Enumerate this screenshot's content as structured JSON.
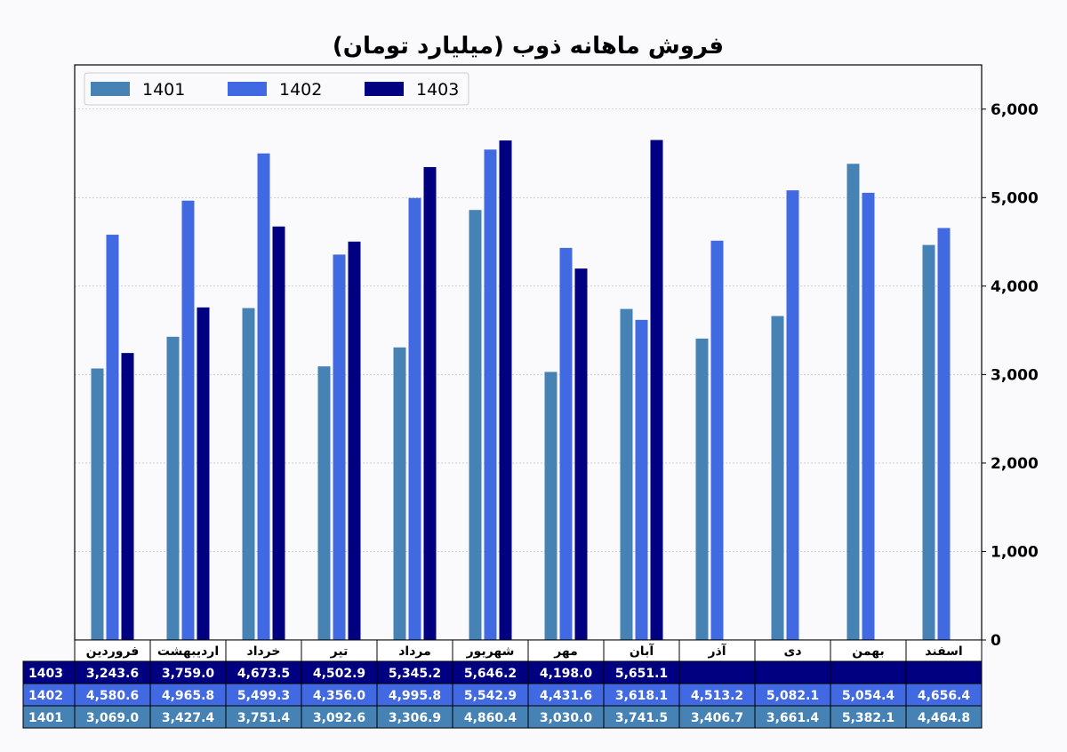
{
  "chart_data": {
    "type": "bar",
    "title": "فروش ماهانه ذوب (میلیارد تومان)",
    "xlabel": "",
    "ylabel": "",
    "ylim": [
      0,
      6500
    ],
    "yticks": [
      0,
      1000,
      2000,
      3000,
      4000,
      5000,
      6000
    ],
    "ytick_labels": [
      "0",
      "1,000",
      "2,000",
      "3,000",
      "4,000",
      "5,000",
      "6,000"
    ],
    "y_axis_side": "right",
    "grid": true,
    "legend_position": "top-left",
    "categories": [
      "فروردین",
      "اردیبهشت",
      "خرداد",
      "تیر",
      "مرداد",
      "شهریور",
      "مهر",
      "آبان",
      "آذر",
      "دی",
      "بهمن",
      "اسفند"
    ],
    "series": [
      {
        "name": "1401",
        "color": "#4682b4",
        "values": [
          3069.0,
          3427.4,
          3751.4,
          3092.6,
          3306.9,
          4860.4,
          3030.0,
          3741.5,
          3406.7,
          3661.4,
          5382.1,
          4464.8
        ],
        "labels": [
          "3,069.0",
          "3,427.4",
          "3,751.4",
          "3,092.6",
          "3,306.9",
          "4,860.4",
          "3,030.0",
          "3,741.5",
          "3,406.7",
          "3,661.4",
          "5,382.1",
          "4,464.8"
        ]
      },
      {
        "name": "1402",
        "color": "#4169e1",
        "values": [
          4580.6,
          4965.8,
          5499.3,
          4356.0,
          4995.8,
          5542.9,
          4431.6,
          3618.1,
          4513.2,
          5082.1,
          5054.4,
          4656.4
        ],
        "labels": [
          "4,580.6",
          "4,965.8",
          "5,499.3",
          "4,356.0",
          "4,995.8",
          "5,542.9",
          "4,431.6",
          "3,618.1",
          "4,513.2",
          "5,082.1",
          "5,054.4",
          "4,656.4"
        ]
      },
      {
        "name": "1403",
        "color": "#000080",
        "values": [
          3243.6,
          3759.0,
          4673.5,
          4502.9,
          5345.2,
          5646.2,
          4198.0,
          5651.1,
          null,
          null,
          null,
          null
        ],
        "labels": [
          "3,243.6",
          "3,759.0",
          "4,673.5",
          "4,502.9",
          "5,345.2",
          "5,646.2",
          "4,198.0",
          "5,651.1",
          "",
          "",
          "",
          ""
        ]
      }
    ],
    "table_row_order": [
      "1403",
      "1402",
      "1401"
    ]
  }
}
